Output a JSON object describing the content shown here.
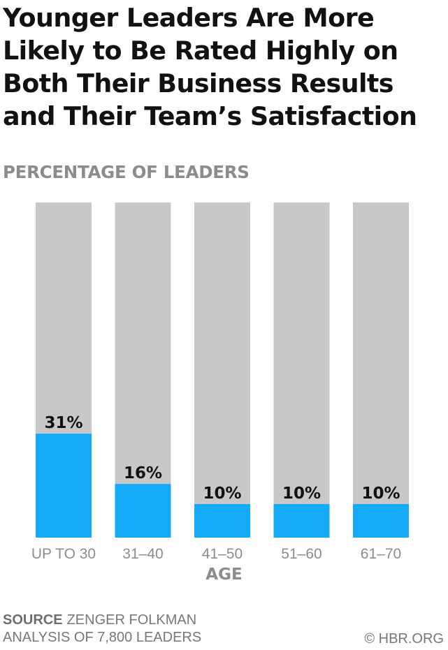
{
  "colors": {
    "background_bar": "#c8c8c8",
    "value_bar": "#14aaf5",
    "label_text": "#111111",
    "axis_text": "#8c8c8c"
  },
  "chart_data": {
    "type": "bar",
    "title": "Younger Leaders Are More Likely to Be Rated Highly on Both Their Business Results and Their Team’s Satisfaction",
    "ylabel": "PERCENTAGE OF LEADERS",
    "xlabel": "AGE",
    "categories": [
      "UP TO 30",
      "31–40",
      "41–50",
      "51–60",
      "61–70"
    ],
    "values": [
      31,
      16,
      10,
      10,
      10
    ],
    "value_labels": [
      "31%",
      "16%",
      "10%",
      "10%",
      "10%"
    ],
    "ylim": [
      0,
      100
    ],
    "grid": false,
    "legend": "none"
  },
  "footer": {
    "source_key": "SOURCE",
    "source_line1": "ZENGER FOLKMAN",
    "source_line2": "ANALYSIS OF 7,800 LEADERS",
    "credit": "© HBR.ORG"
  }
}
